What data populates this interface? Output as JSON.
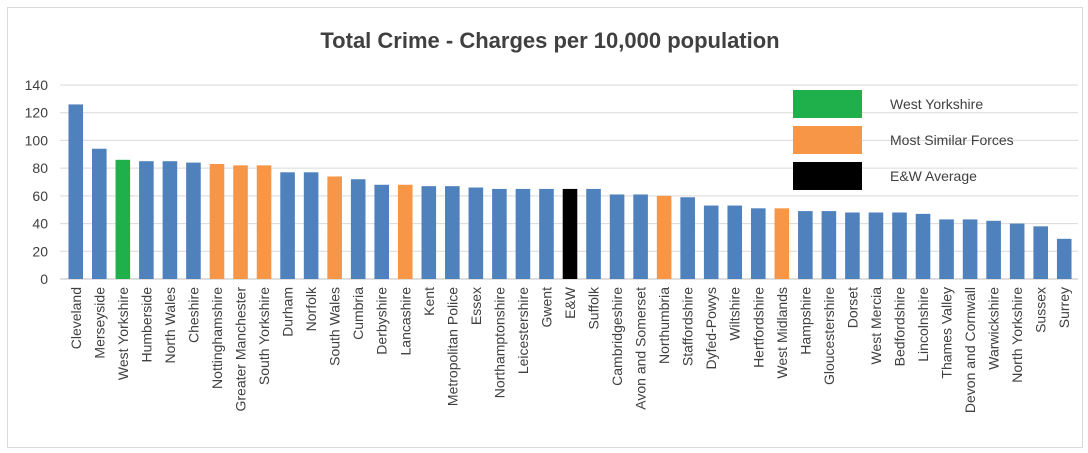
{
  "chart_data": {
    "type": "bar",
    "title": "Total Crime - Charges per 10,000 population",
    "xlabel": "",
    "ylabel": "",
    "ylim": [
      0,
      140
    ],
    "yticks": [
      0,
      20,
      40,
      60,
      80,
      100,
      120,
      140
    ],
    "grid": true,
    "legend_position": "top-right",
    "colors": {
      "default": "#4f81bd",
      "west_yorkshire": "#1fb04c",
      "most_similar": "#f79646",
      "ew_average": "#000000"
    },
    "legend": [
      {
        "label": "West Yorkshire",
        "color": "#1fb04c"
      },
      {
        "label": "Most Similar Forces",
        "color": "#f79646"
      },
      {
        "label": "E&W Average",
        "color": "#000000"
      }
    ],
    "categories": [
      "Cleveland",
      "Merseyside",
      "West Yorkshire",
      "Humberside",
      "North Wales",
      "Cheshire",
      "Nottinghamshire",
      "Greater Manchester",
      "South Yorkshire",
      "Durham",
      "Norfolk",
      "South Wales",
      "Cumbria",
      "Derbyshire",
      "Lancashire",
      "Kent",
      "Metropolitan Police",
      "Essex",
      "Northamptonshire",
      "Leicestershire",
      "Gwent",
      "E&W",
      "Suffolk",
      "Cambridgeshire",
      "Avon and Somerset",
      "Northumbria",
      "Staffordshire",
      "Dyfed-Powys",
      "Wiltshire",
      "Hertfordshire",
      "West Midlands",
      "Hampshire",
      "Gloucestershire",
      "Dorset",
      "West Mercia",
      "Bedfordshire",
      "Lincolnshire",
      "Thames Valley",
      "Devon and Cornwall",
      "Warwickshire",
      "North Yorkshire",
      "Sussex",
      "Surrey"
    ],
    "values": [
      126,
      94,
      86,
      85,
      85,
      84,
      83,
      82,
      82,
      77,
      77,
      74,
      72,
      68,
      68,
      67,
      67,
      66,
      65,
      65,
      65,
      65,
      65,
      61,
      61,
      60,
      59,
      53,
      53,
      51,
      51,
      49,
      49,
      48,
      48,
      48,
      47,
      43,
      43,
      42,
      40,
      38,
      29
    ],
    "groups": [
      "default",
      "default",
      "west_yorkshire",
      "default",
      "default",
      "default",
      "most_similar",
      "most_similar",
      "most_similar",
      "default",
      "default",
      "most_similar",
      "default",
      "default",
      "most_similar",
      "default",
      "default",
      "default",
      "default",
      "default",
      "default",
      "ew_average",
      "default",
      "default",
      "default",
      "most_similar",
      "default",
      "default",
      "default",
      "default",
      "most_similar",
      "default",
      "default",
      "default",
      "default",
      "default",
      "default",
      "default",
      "default",
      "default",
      "default",
      "default",
      "default"
    ]
  }
}
